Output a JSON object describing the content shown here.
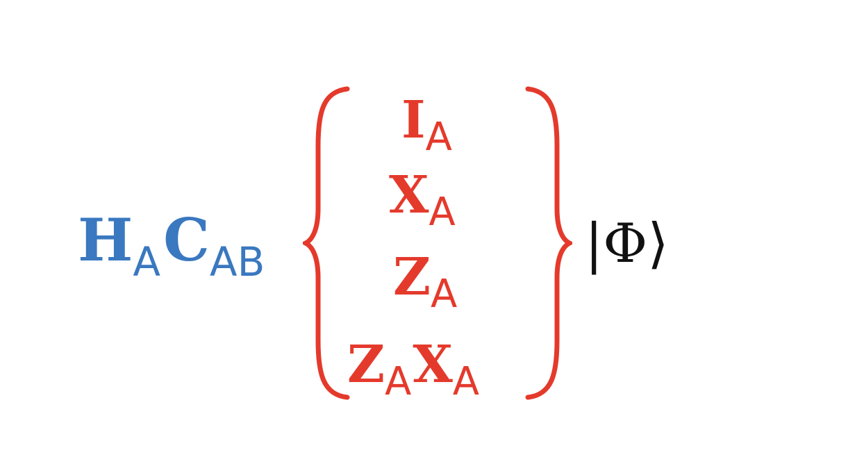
{
  "colors": {
    "operator": "#3a78c0",
    "pauli": "#e43a2c",
    "state": "#111111"
  },
  "operators": [
    {
      "symbol": "H",
      "subscript": "A"
    },
    {
      "symbol": "C",
      "subscript": "AB"
    }
  ],
  "pauli_terms": [
    {
      "parts": [
        {
          "symbol": "I",
          "subscript": "A"
        }
      ]
    },
    {
      "parts": [
        {
          "symbol": "X",
          "subscript": "A"
        }
      ]
    },
    {
      "parts": [
        {
          "symbol": "Z",
          "subscript": "A"
        }
      ]
    },
    {
      "parts": [
        {
          "symbol": "Z",
          "subscript": "A"
        },
        {
          "symbol": "X",
          "subscript": "A"
        }
      ]
    }
  ],
  "state": {
    "open": "|",
    "symbol": "Φ",
    "close": "⟩"
  }
}
